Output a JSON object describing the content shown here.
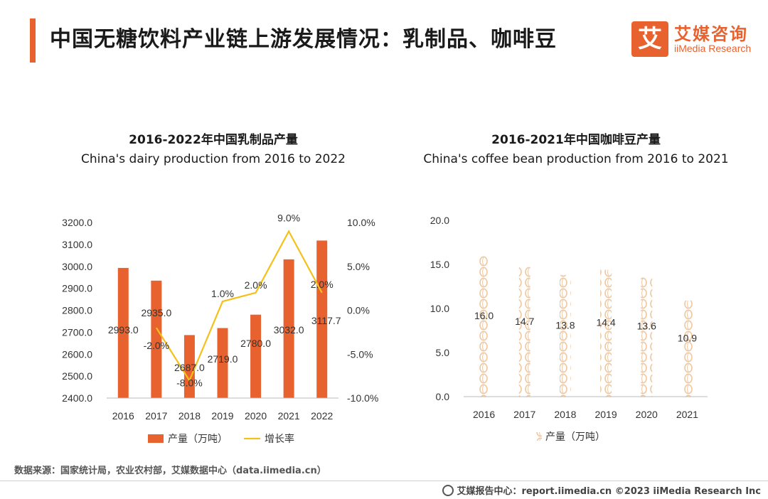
{
  "page": {
    "title": "中国无糖饮料产业链上游发展情况：乳制品、咖啡豆",
    "logo_cn": "艾媒咨询",
    "logo_en": "iiMedia Research",
    "logo_mark": "艾",
    "source": "数据来源：国家统计局，农业农村部，艾媒数据中心（data.iimedia.cn）",
    "footer": "艾媒报告中心：report.iimedia.cn  ©2023  iiMedia Research  Inc",
    "accent_color": "#e8622f",
    "line_color": "#f5c018"
  },
  "chart_data": [
    {
      "type": "bar",
      "title": "2016-2022年中国乳制品产量",
      "subtitle": "China's dairy production from 2016 to 2022",
      "categories": [
        "2016",
        "2017",
        "2018",
        "2019",
        "2020",
        "2021",
        "2022"
      ],
      "series": [
        {
          "name": "产量（万吨）",
          "type": "bar",
          "axis": "left",
          "values": [
            2993.0,
            2935.0,
            2687.0,
            2719.0,
            2780.0,
            3032.0,
            3117.7
          ],
          "labels": [
            "2993.0",
            "2935.0",
            "2687.0",
            "2719.0",
            "2780.0",
            "3032.0",
            "3117.7"
          ]
        },
        {
          "name": "增长率",
          "type": "line",
          "axis": "right",
          "values": [
            null,
            -2.0,
            -8.0,
            1.0,
            2.0,
            9.0,
            2.0
          ],
          "labels": [
            "",
            "-2.0%",
            "-8.0%",
            "1.0%",
            "2.0%",
            "9.0%",
            "2.0%"
          ]
        }
      ],
      "ylim": [
        2400,
        3200
      ],
      "yticks": [
        "2400.0",
        "2500.0",
        "2600.0",
        "2700.0",
        "2800.0",
        "2900.0",
        "3000.0",
        "3100.0",
        "3200.0"
      ],
      "y2lim": [
        -10,
        10
      ],
      "y2ticks": [
        "-10.0%",
        "-5.0%",
        "0.0%",
        "5.0%",
        "10.0%"
      ],
      "legend": "bottom"
    },
    {
      "type": "bar",
      "title": "2016-2021年中国咖啡豆产量",
      "subtitle": "China's coffee bean production from 2016 to 2021",
      "categories": [
        "2016",
        "2017",
        "2018",
        "2019",
        "2020",
        "2021"
      ],
      "series": [
        {
          "name": "产量（万吨）",
          "values": [
            16.0,
            14.7,
            13.8,
            14.4,
            13.6,
            10.9
          ],
          "labels": [
            "16.0",
            "14.7",
            "13.8",
            "14.4",
            "13.6",
            "10.9"
          ]
        }
      ],
      "ylim": [
        0,
        20
      ],
      "yticks": [
        "0.0",
        "5.0",
        "10.0",
        "15.0",
        "20.0"
      ],
      "legend": "bottom",
      "bar_style": "coffee-bean-pattern"
    }
  ]
}
